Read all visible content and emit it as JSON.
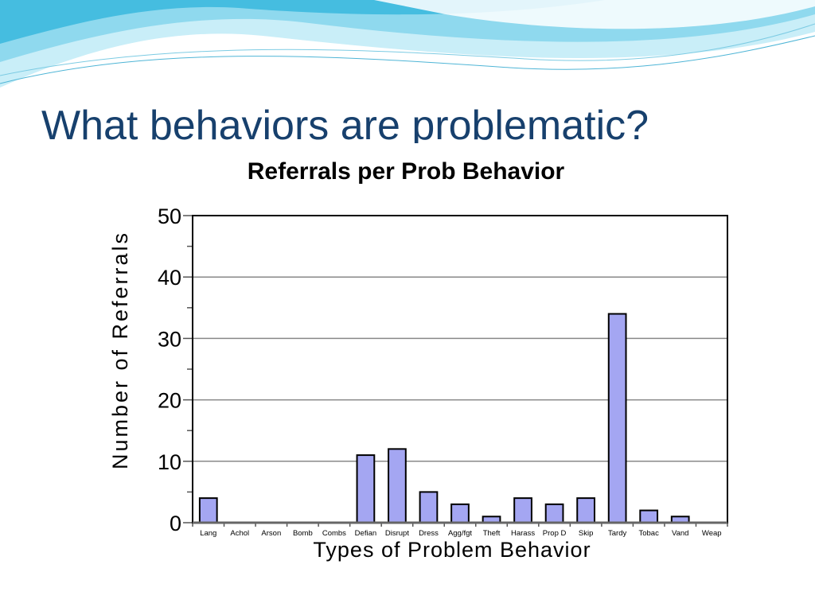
{
  "slide": {
    "title": "What behaviors are problematic?"
  },
  "colors": {
    "bar_fill": "#a4a6f2",
    "bar_stroke": "#000000",
    "title_color": "#17406d",
    "wave_light": "#c7eef8",
    "wave_mid": "#7fd3ea",
    "wave_dark": "#34b6dc"
  },
  "chart_data": {
    "type": "bar",
    "title": "Referrals per Prob Behavior",
    "xlabel": "Types of Problem Behavior",
    "ylabel": "Number of Referrals",
    "ylim": [
      0,
      50
    ],
    "yticks": [
      0,
      10,
      20,
      30,
      40,
      50
    ],
    "grid": true,
    "legend": "none",
    "categories": [
      "Lang",
      "Achol",
      "Arson",
      "Bomb",
      "Combs",
      "Defian",
      "Disrupt",
      "Dress",
      "Agg/fgt",
      "Theft",
      "Harass",
      "Prop D",
      "Skip",
      "Tardy",
      "Tobac",
      "Vand",
      "Weap"
    ],
    "values": [
      4,
      0,
      0,
      0,
      0,
      11,
      12,
      5,
      3,
      1,
      4,
      3,
      4,
      34,
      2,
      1,
      0
    ]
  }
}
